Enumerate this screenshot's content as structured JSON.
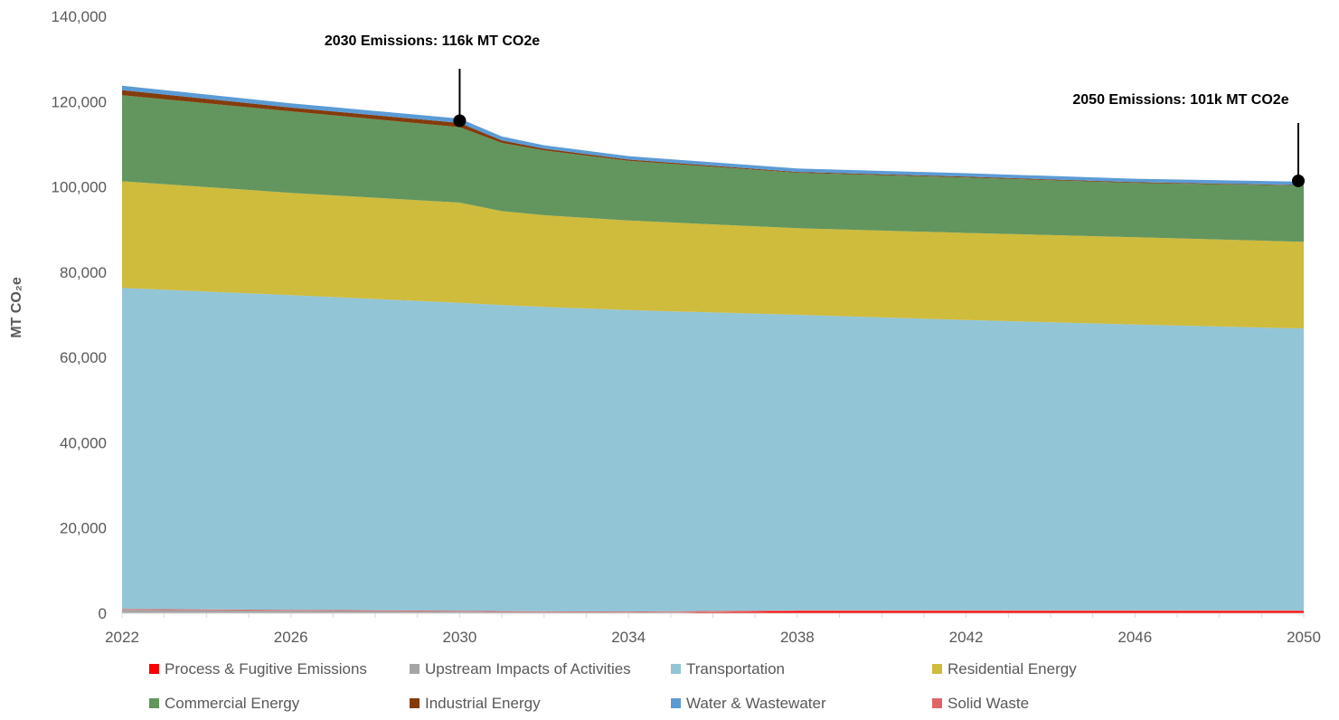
{
  "chart_data": {
    "type": "area",
    "stacked": true,
    "ylabel": "MT CO₂e",
    "xlabel": "",
    "title": "",
    "ylim": [
      0,
      140000
    ],
    "yticks": [
      0,
      20000,
      40000,
      60000,
      80000,
      100000,
      120000,
      140000
    ],
    "ytick_labels": [
      "0",
      "20,000",
      "40,000",
      "60,000",
      "80,000",
      "100,000",
      "120,000",
      "140,000"
    ],
    "xlim": [
      2022,
      2050
    ],
    "xticks": [
      2022,
      2026,
      2030,
      2034,
      2038,
      2042,
      2046,
      2050
    ],
    "xtick_labels": [
      "2022",
      "2026",
      "2030",
      "2034",
      "2038",
      "2042",
      "2046",
      "2050"
    ],
    "grid": false,
    "legend_position": "bottom",
    "x": [
      2022,
      2026,
      2030,
      2031,
      2032,
      2034,
      2038,
      2042,
      2046,
      2050
    ],
    "series": [
      {
        "name": "Process & Fugitive Emissions",
        "color": "#ff0000",
        "values": [
          0,
          0,
          0,
          0,
          0,
          0,
          500,
          500,
          500,
          500
        ]
      },
      {
        "name": "Upstream Impacts of Activities",
        "color": "#a5a5a5",
        "values": [
          800,
          600,
          400,
          300,
          250,
          200,
          0,
          0,
          0,
          0
        ]
      },
      {
        "name": "Solid Waste",
        "color": "#e06666",
        "values": [
          200,
          200,
          200,
          200,
          200,
          200,
          200,
          200,
          200,
          200
        ]
      },
      {
        "name": "Transportation",
        "color": "#92c5d6",
        "values": [
          75300,
          73800,
          72200,
          71800,
          71400,
          70700,
          69300,
          68100,
          67000,
          66100
        ]
      },
      {
        "name": "Residential Energy",
        "color": "#cfbb3c",
        "values": [
          25000,
          24000,
          23500,
          22000,
          21500,
          21000,
          20300,
          20400,
          20500,
          20300
        ]
      },
      {
        "name": "Commercial Energy",
        "color": "#62965e",
        "values": [
          20200,
          19100,
          17700,
          16000,
          15200,
          14000,
          13000,
          13000,
          12700,
          13200
        ]
      },
      {
        "name": "Industrial Energy",
        "color": "#843c0c",
        "values": [
          1200,
          900,
          1000,
          600,
          400,
          300,
          200,
          200,
          200,
          100
        ]
      },
      {
        "name": "Water & Wastewater",
        "color": "#5b9bd5",
        "values": [
          1000,
          1000,
          1000,
          900,
          800,
          800,
          800,
          800,
          800,
          800
        ]
      }
    ],
    "legend_order": [
      "Process & Fugitive Emissions",
      "Upstream Impacts of Activities",
      "Transportation",
      "Residential Energy",
      "Commercial Energy",
      "Industrial Energy",
      "Water & Wastewater",
      "Solid Waste"
    ],
    "annotations": [
      {
        "text": "2030 Emissions: 116k MT CO2e",
        "x": 2030,
        "y": 115500
      },
      {
        "text": "2050 Emissions: 101k MT CO2e",
        "x": 2050,
        "y": 101400
      }
    ]
  }
}
